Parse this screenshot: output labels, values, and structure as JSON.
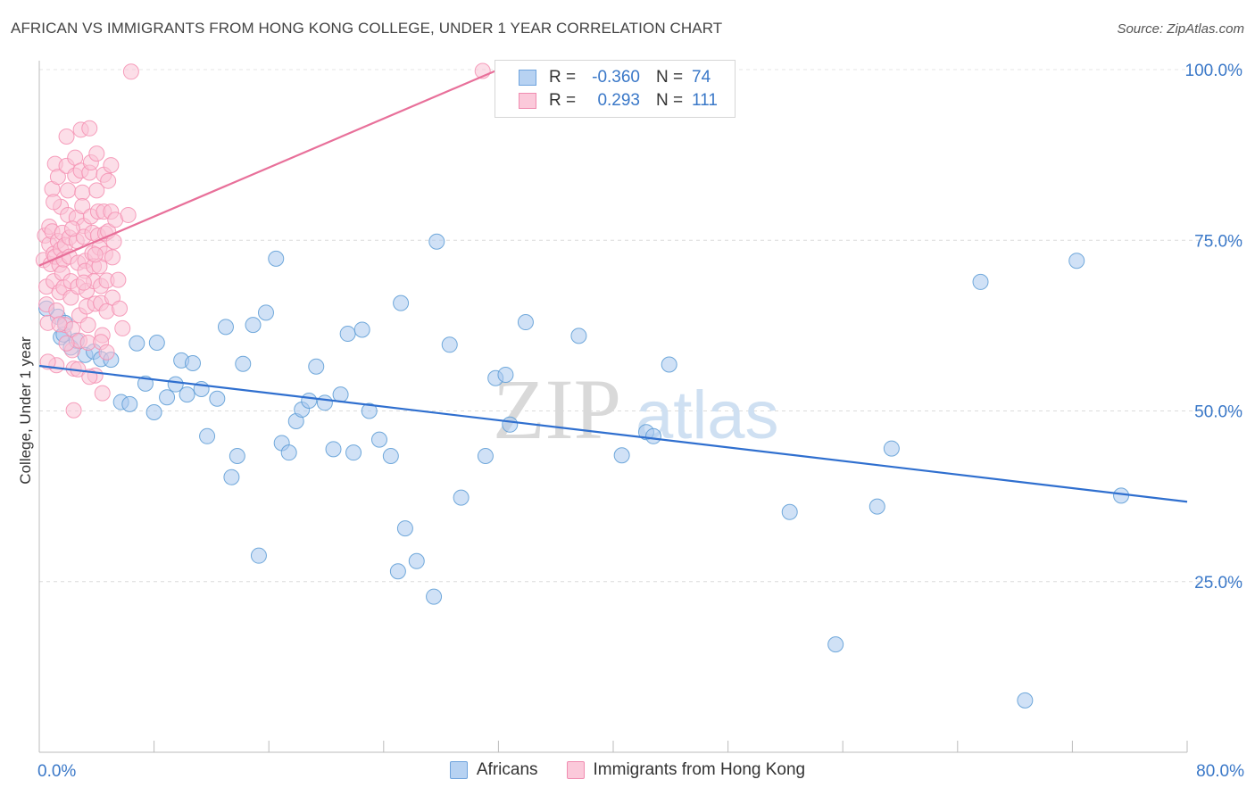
{
  "title": "AFRICAN VS IMMIGRANTS FROM HONG KONG COLLEGE, UNDER 1 YEAR CORRELATION CHART",
  "source": "Source: ZipAtlas.com",
  "watermark": {
    "zip": "ZIP",
    "atlas": "atlas"
  },
  "legend": {
    "rows": [
      {
        "r_label": "R =",
        "r_value": "-0.360",
        "n_label": "N =",
        "n_value": "74",
        "color": "#5b9bd5"
      },
      {
        "r_label": "R =",
        "r_value": "0.293",
        "n_label": "N =",
        "n_value": "111",
        "color": "#f48fb1"
      }
    ]
  },
  "chart_data": {
    "type": "scatter",
    "title": "AFRICAN VS IMMIGRANTS FROM HONG KONG COLLEGE, UNDER 1 YEAR CORRELATION CHART",
    "xlabel": "",
    "ylabel": "College, Under 1 year",
    "xlim": [
      0,
      80
    ],
    "ylim": [
      0,
      100
    ],
    "x_tick_labels": [
      "0.0%",
      "80.0%"
    ],
    "y_ticks": [
      25,
      50,
      75,
      100
    ],
    "y_tick_labels": [
      "25.0%",
      "50.0%",
      "75.0%",
      "100.0%"
    ],
    "grid": true,
    "series": [
      {
        "name": "Africans",
        "color": "#5b9bd5",
        "fill": "#a9c8ee",
        "trend": {
          "x": [
            0,
            80
          ],
          "y": [
            56.6,
            36.7
          ]
        },
        "points": [
          [
            1.3,
            63.8
          ],
          [
            1.5,
            60.8
          ],
          [
            1.7,
            61.2
          ],
          [
            2.2,
            59.3
          ],
          [
            2.6,
            60.3
          ],
          [
            3.2,
            58.2
          ],
          [
            3.8,
            58.7
          ],
          [
            4.3,
            57.6
          ],
          [
            5.0,
            57.5
          ],
          [
            5.7,
            51.3
          ],
          [
            6.3,
            51.0
          ],
          [
            6.8,
            59.9
          ],
          [
            7.4,
            54.0
          ],
          [
            8.0,
            49.8
          ],
          [
            8.2,
            60.0
          ],
          [
            8.9,
            52.0
          ],
          [
            9.5,
            53.9
          ],
          [
            9.9,
            57.4
          ],
          [
            10.3,
            52.4
          ],
          [
            10.7,
            57.0
          ],
          [
            11.3,
            53.2
          ],
          [
            11.7,
            46.3
          ],
          [
            12.4,
            51.8
          ],
          [
            13.0,
            62.3
          ],
          [
            13.4,
            40.3
          ],
          [
            13.8,
            43.4
          ],
          [
            14.2,
            56.9
          ],
          [
            14.9,
            62.6
          ],
          [
            15.3,
            28.8
          ],
          [
            15.8,
            64.4
          ],
          [
            16.5,
            72.3
          ],
          [
            16.9,
            45.3
          ],
          [
            17.4,
            43.9
          ],
          [
            17.9,
            48.5
          ],
          [
            18.3,
            50.2
          ],
          [
            18.8,
            51.5
          ],
          [
            19.3,
            56.5
          ],
          [
            19.9,
            51.2
          ],
          [
            20.5,
            44.4
          ],
          [
            21.0,
            52.4
          ],
          [
            21.5,
            61.3
          ],
          [
            21.9,
            43.9
          ],
          [
            22.5,
            61.9
          ],
          [
            23.0,
            50.0
          ],
          [
            23.7,
            45.8
          ],
          [
            24.5,
            43.4
          ],
          [
            25.2,
            65.8
          ],
          [
            25.5,
            32.8
          ],
          [
            25.0,
            26.5
          ],
          [
            26.3,
            28.0
          ],
          [
            27.5,
            22.8
          ],
          [
            27.7,
            74.8
          ],
          [
            28.6,
            59.7
          ],
          [
            29.4,
            37.3
          ],
          [
            31.1,
            43.4
          ],
          [
            31.8,
            54.8
          ],
          [
            32.5,
            55.3
          ],
          [
            32.8,
            48.0
          ],
          [
            33.9,
            63.0
          ],
          [
            37.6,
            61.0
          ],
          [
            40.6,
            43.5
          ],
          [
            42.3,
            46.9
          ],
          [
            42.8,
            46.3
          ],
          [
            43.9,
            56.8
          ],
          [
            52.3,
            35.2
          ],
          [
            55.5,
            15.8
          ],
          [
            58.4,
            36.0
          ],
          [
            59.4,
            44.5
          ],
          [
            65.6,
            68.9
          ],
          [
            68.7,
            7.6
          ],
          [
            72.3,
            72.0
          ],
          [
            75.4,
            37.6
          ],
          [
            0.5,
            65.0
          ],
          [
            1.8,
            62.9
          ]
        ]
      },
      {
        "name": "Immigrants from Hong Kong",
        "color": "#f48fb1",
        "fill": "#f9c2d5",
        "trend": {
          "x": [
            0,
            32
          ],
          "y": [
            71.3,
            100
          ]
        },
        "points": [
          [
            0.3,
            72.1
          ],
          [
            0.4,
            75.7
          ],
          [
            0.5,
            68.2
          ],
          [
            0.5,
            65.6
          ],
          [
            0.6,
            62.9
          ],
          [
            0.7,
            74.4
          ],
          [
            0.7,
            77.0
          ],
          [
            0.8,
            71.5
          ],
          [
            0.9,
            82.5
          ],
          [
            0.9,
            76.3
          ],
          [
            1.0,
            73.0
          ],
          [
            1.0,
            69.0
          ],
          [
            1.1,
            86.2
          ],
          [
            1.1,
            72.6
          ],
          [
            1.2,
            56.7
          ],
          [
            1.2,
            64.7
          ],
          [
            1.3,
            84.3
          ],
          [
            1.3,
            74.9
          ],
          [
            1.4,
            71.4
          ],
          [
            1.4,
            67.4
          ],
          [
            1.5,
            79.9
          ],
          [
            1.5,
            73.7
          ],
          [
            1.6,
            76.1
          ],
          [
            1.6,
            70.2
          ],
          [
            1.7,
            72.2
          ],
          [
            1.7,
            68.1
          ],
          [
            1.8,
            62.6
          ],
          [
            1.8,
            74.3
          ],
          [
            1.9,
            90.2
          ],
          [
            1.9,
            85.9
          ],
          [
            2.0,
            82.3
          ],
          [
            2.0,
            78.7
          ],
          [
            2.1,
            75.4
          ],
          [
            2.1,
            72.6
          ],
          [
            2.2,
            69.0
          ],
          [
            2.2,
            66.6
          ],
          [
            2.3,
            62.0
          ],
          [
            2.3,
            58.9
          ],
          [
            2.4,
            50.1
          ],
          [
            2.4,
            56.2
          ],
          [
            2.5,
            87.1
          ],
          [
            2.5,
            84.5
          ],
          [
            2.6,
            78.3
          ],
          [
            2.6,
            74.9
          ],
          [
            2.7,
            71.7
          ],
          [
            2.7,
            68.2
          ],
          [
            2.8,
            64.0
          ],
          [
            2.8,
            60.3
          ],
          [
            2.9,
            91.2
          ],
          [
            2.9,
            85.2
          ],
          [
            3.0,
            82.0
          ],
          [
            3.0,
            80.0
          ],
          [
            3.1,
            77.1
          ],
          [
            3.1,
            75.5
          ],
          [
            3.2,
            72.0
          ],
          [
            3.2,
            70.5
          ],
          [
            3.3,
            67.6
          ],
          [
            3.3,
            65.3
          ],
          [
            3.4,
            62.6
          ],
          [
            3.4,
            60.0
          ],
          [
            3.5,
            91.4
          ],
          [
            3.5,
            84.9
          ],
          [
            3.6,
            86.4
          ],
          [
            3.6,
            78.5
          ],
          [
            3.7,
            76.1
          ],
          [
            3.7,
            73.1
          ],
          [
            3.8,
            71.2
          ],
          [
            3.8,
            69.0
          ],
          [
            3.9,
            65.7
          ],
          [
            3.9,
            55.2
          ],
          [
            4.0,
            87.7
          ],
          [
            4.0,
            82.3
          ],
          [
            4.1,
            79.2
          ],
          [
            4.1,
            75.7
          ],
          [
            4.2,
            73.9
          ],
          [
            4.2,
            71.2
          ],
          [
            4.3,
            68.3
          ],
          [
            4.3,
            65.8
          ],
          [
            4.4,
            61.1
          ],
          [
            4.4,
            52.6
          ],
          [
            4.5,
            84.6
          ],
          [
            4.5,
            79.2
          ],
          [
            4.6,
            76.0
          ],
          [
            4.6,
            73.0
          ],
          [
            4.7,
            69.1
          ],
          [
            4.7,
            64.6
          ],
          [
            4.8,
            83.7
          ],
          [
            4.8,
            76.3
          ],
          [
            5.0,
            86.0
          ],
          [
            5.0,
            79.2
          ],
          [
            5.1,
            72.5
          ],
          [
            5.1,
            66.6
          ],
          [
            5.3,
            78.0
          ],
          [
            5.5,
            69.2
          ],
          [
            5.8,
            62.1
          ],
          [
            6.2,
            78.7
          ],
          [
            6.4,
            99.7
          ],
          [
            30.9,
            99.8
          ],
          [
            0.6,
            57.2
          ],
          [
            1.0,
            80.6
          ],
          [
            1.4,
            62.7
          ],
          [
            1.9,
            59.9
          ],
          [
            2.3,
            76.7
          ],
          [
            2.7,
            56.1
          ],
          [
            3.1,
            68.8
          ],
          [
            3.5,
            55.0
          ],
          [
            3.9,
            72.9
          ],
          [
            4.3,
            60.1
          ],
          [
            4.7,
            58.6
          ],
          [
            5.2,
            74.8
          ],
          [
            5.6,
            65.0
          ]
        ]
      }
    ]
  },
  "axes": {
    "y_axis_title": "College, Under 1 year",
    "x_min_label": "0.0%",
    "x_max_label": "80.0%",
    "y_labels": [
      "25.0%",
      "50.0%",
      "75.0%",
      "100.0%"
    ]
  },
  "bottom_legend": [
    {
      "label": "Africans",
      "color": "#5b9bd5",
      "fill": "#a9c8ee"
    },
    {
      "label": "Immigrants from Hong Kong",
      "color": "#f48fb1",
      "fill": "#f9c2d5"
    }
  ]
}
